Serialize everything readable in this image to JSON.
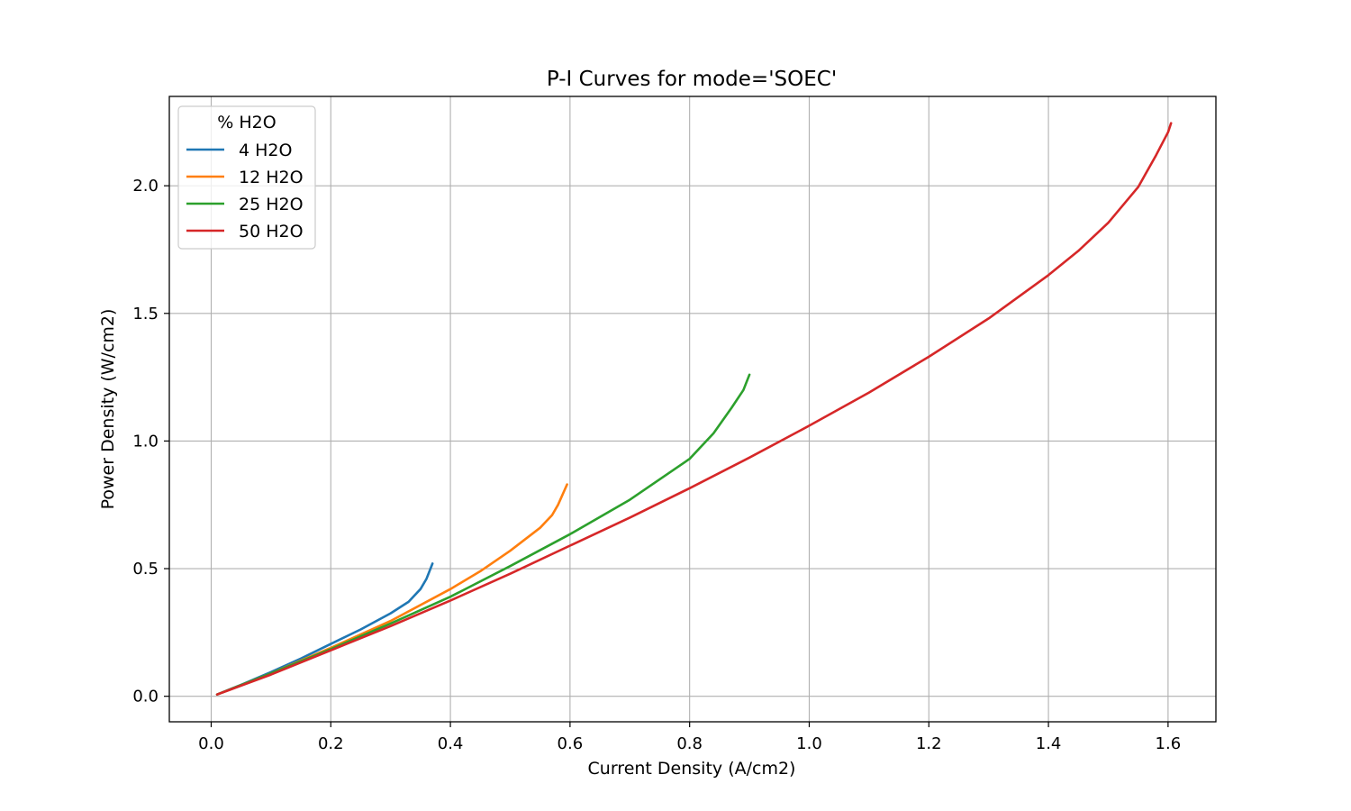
{
  "chart_data": {
    "type": "line",
    "title": "P-I Curves for mode='SOEC'",
    "xlabel": "Current Density (A/cm2)",
    "ylabel": "Power Density (W/cm2)",
    "xlim": [
      -0.07,
      1.68
    ],
    "ylim": [
      -0.1,
      2.35
    ],
    "xticks": [
      0.0,
      0.2,
      0.4,
      0.6,
      0.8,
      1.0,
      1.2,
      1.4,
      1.6
    ],
    "xtick_labels": [
      "0.0",
      "0.2",
      "0.4",
      "0.6",
      "0.8",
      "1.0",
      "1.2",
      "1.4",
      "1.6"
    ],
    "yticks": [
      0.0,
      0.5,
      1.0,
      1.5,
      2.0
    ],
    "ytick_labels": [
      "0.0",
      "0.5",
      "1.0",
      "1.5",
      "2.0"
    ],
    "grid": true,
    "legend": {
      "title": "% H2O",
      "placement": "upper left"
    },
    "series": [
      {
        "name": "4 H2O",
        "color": "#1f77b4",
        "x": [
          0.01,
          0.05,
          0.1,
          0.15,
          0.2,
          0.25,
          0.3,
          0.33,
          0.35,
          0.36,
          0.37
        ],
        "y": [
          0.007,
          0.045,
          0.095,
          0.148,
          0.205,
          0.262,
          0.325,
          0.37,
          0.42,
          0.46,
          0.52
        ]
      },
      {
        "name": "12 H2O",
        "color": "#ff7f0e",
        "x": [
          0.01,
          0.1,
          0.2,
          0.3,
          0.4,
          0.45,
          0.5,
          0.55,
          0.57,
          0.58,
          0.595
        ],
        "y": [
          0.007,
          0.09,
          0.19,
          0.295,
          0.42,
          0.49,
          0.57,
          0.66,
          0.71,
          0.75,
          0.83
        ]
      },
      {
        "name": "25 H2O",
        "color": "#2ca02c",
        "x": [
          0.01,
          0.1,
          0.2,
          0.3,
          0.4,
          0.5,
          0.6,
          0.7,
          0.8,
          0.84,
          0.87,
          0.89,
          0.9
        ],
        "y": [
          0.007,
          0.09,
          0.185,
          0.285,
          0.39,
          0.51,
          0.635,
          0.77,
          0.93,
          1.03,
          1.13,
          1.2,
          1.26
        ]
      },
      {
        "name": "50 H2O",
        "color": "#d62728",
        "x": [
          0.01,
          0.1,
          0.2,
          0.3,
          0.4,
          0.5,
          0.6,
          0.7,
          0.8,
          0.9,
          1.0,
          1.1,
          1.2,
          1.3,
          1.4,
          1.45,
          1.5,
          1.55,
          1.58,
          1.6,
          1.605
        ],
        "y": [
          0.007,
          0.085,
          0.18,
          0.275,
          0.375,
          0.48,
          0.59,
          0.7,
          0.815,
          0.935,
          1.06,
          1.19,
          1.33,
          1.48,
          1.65,
          1.745,
          1.855,
          1.995,
          2.12,
          2.21,
          2.245
        ]
      }
    ]
  }
}
